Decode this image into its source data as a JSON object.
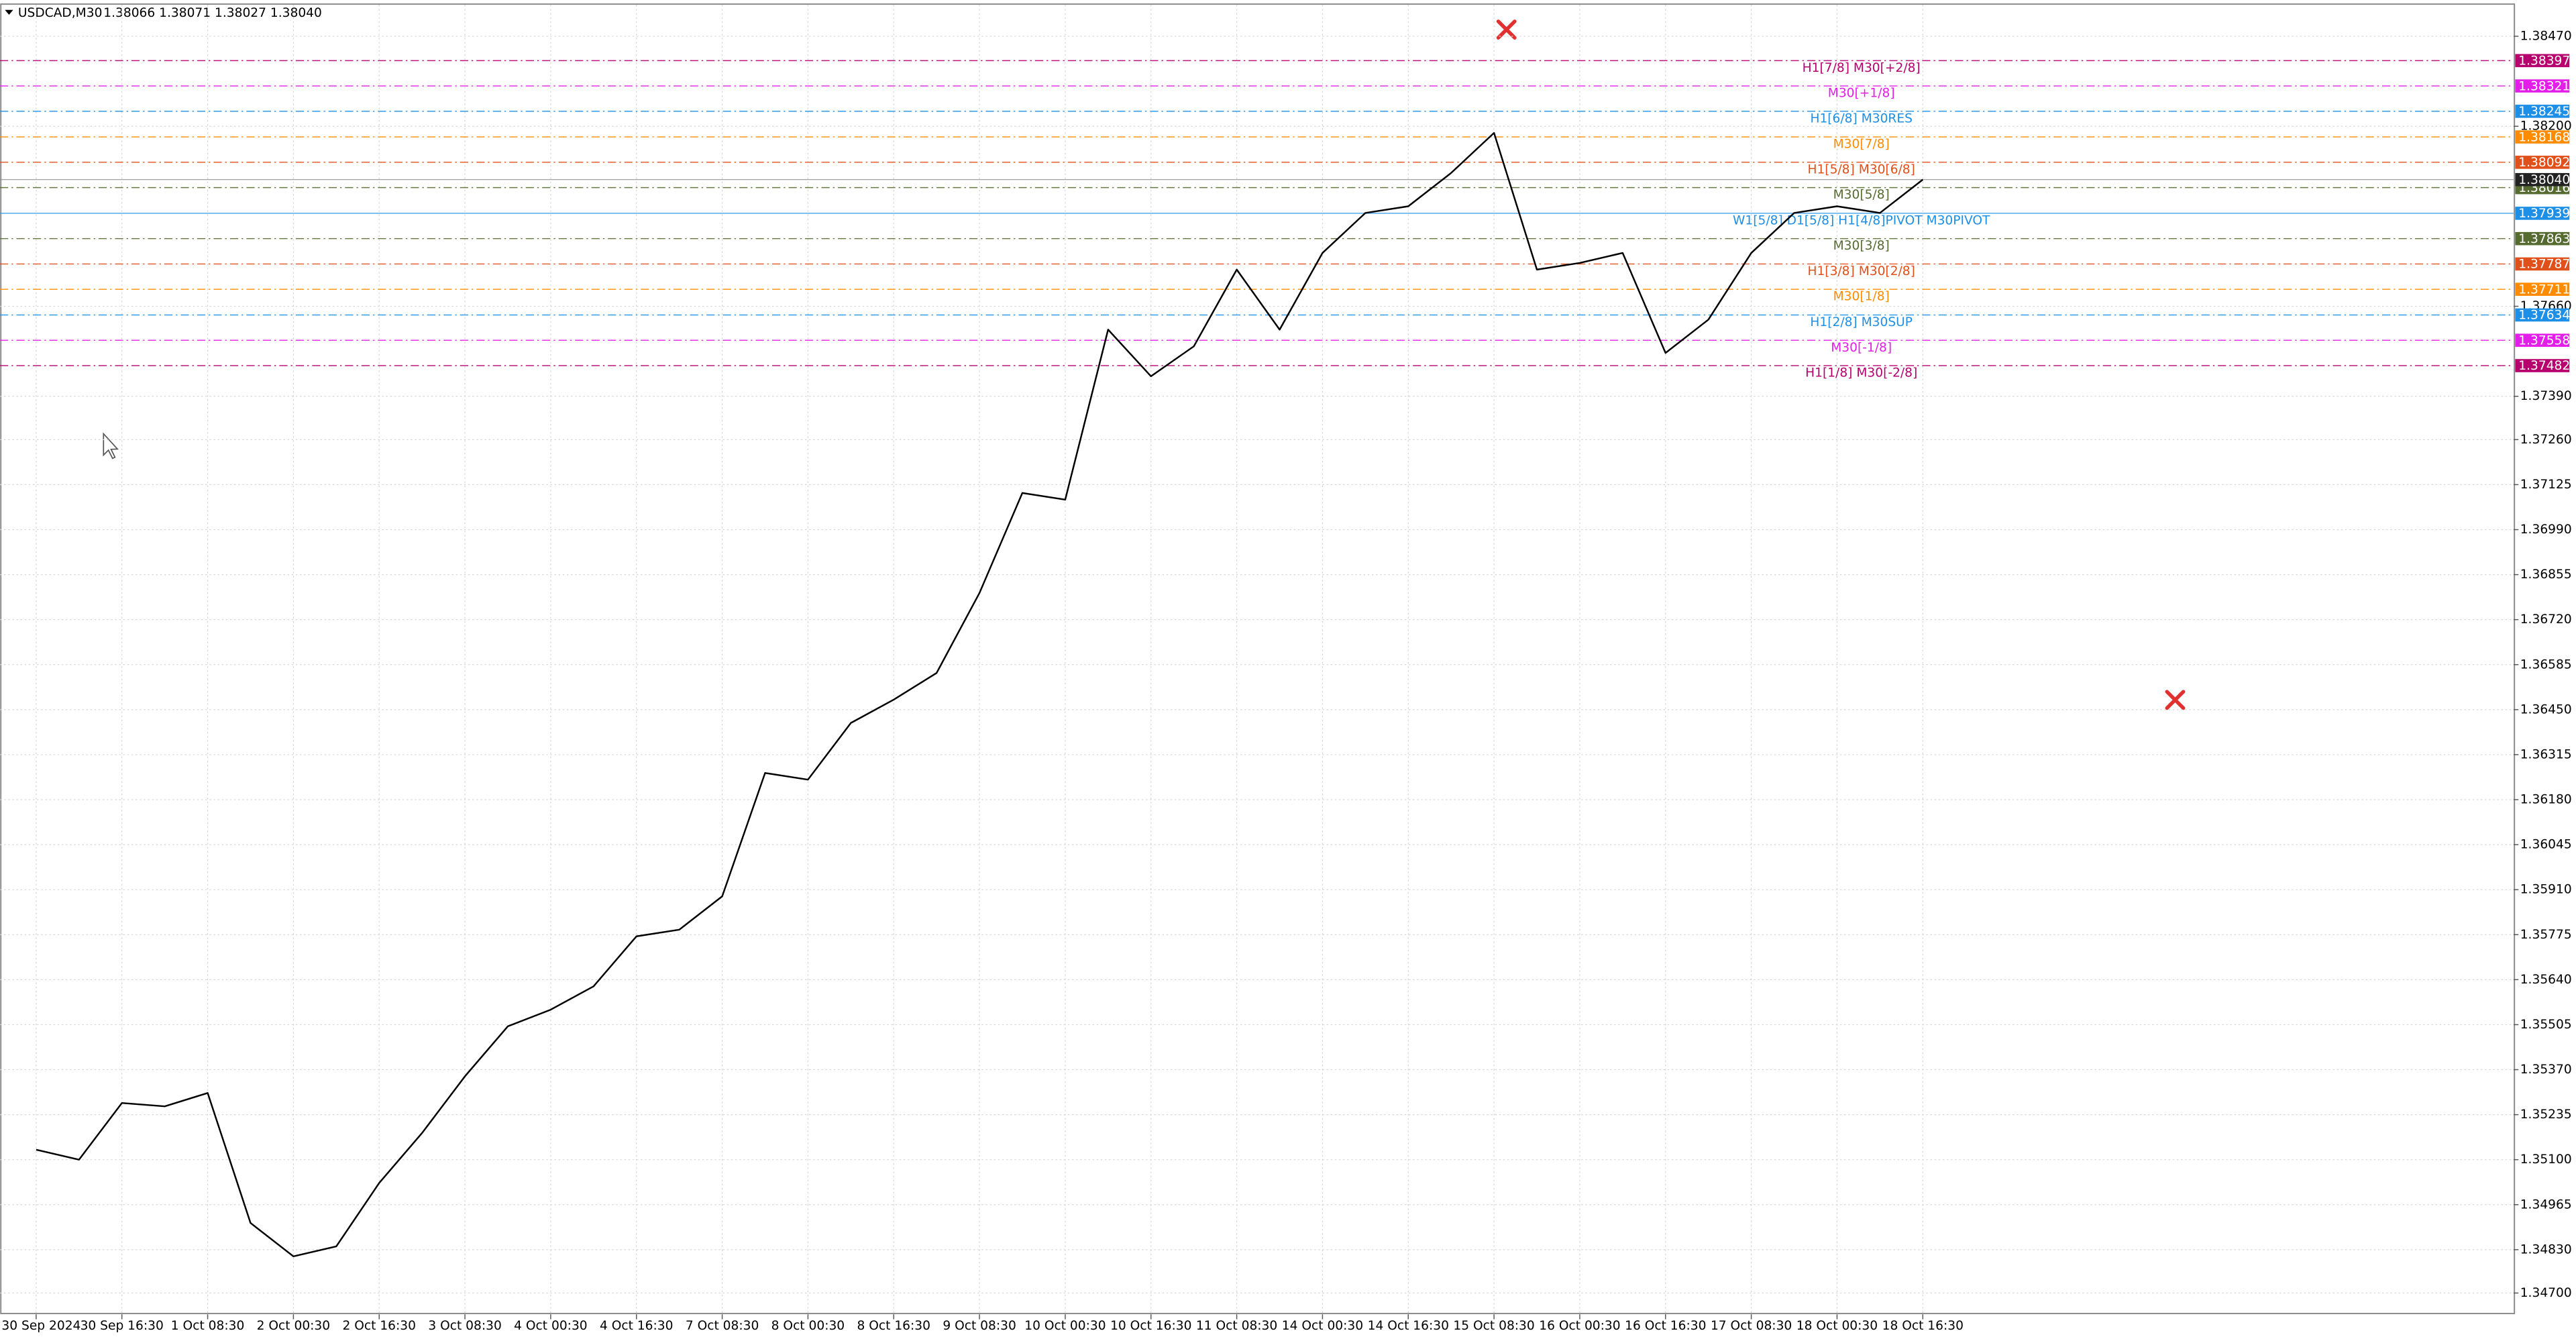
{
  "chart_data": {
    "type": "line",
    "title": "USDCAD,M30",
    "ohlc_text": "1.38066 1.38071 1.38027 1.38040",
    "color": "#000000",
    "categories": [
      "30 Sep 2024",
      null,
      "30 Sep 16:30",
      null,
      "1 Oct 08:30",
      null,
      "2 Oct 00:30",
      null,
      "2 Oct 16:30",
      null,
      "3 Oct 08:30",
      null,
      "4 Oct 00:30",
      null,
      "4 Oct 16:30",
      null,
      "7 Oct 08:30",
      null,
      "8 Oct 00:30",
      null,
      "8 Oct 16:30",
      null,
      "9 Oct 08:30",
      null,
      "10 Oct 00:30",
      null,
      "10 Oct 16:30",
      null,
      "11 Oct 08:30",
      null,
      "14 Oct 00:30",
      null,
      "14 Oct 16:30",
      null,
      "15 Oct 08:30",
      null,
      "16 Oct 00:30",
      null,
      "16 Oct 16:30",
      null,
      "17 Oct 08:30",
      null,
      "18 Oct 00:30",
      null,
      "18 Oct 16:30"
    ],
    "values": [
      1.3513,
      1.351,
      1.3527,
      1.3526,
      1.353,
      1.3491,
      1.3481,
      1.3484,
      1.3503,
      1.3518,
      1.3535,
      1.355,
      1.3555,
      1.3562,
      1.3577,
      1.3579,
      1.3589,
      1.3626,
      1.3624,
      1.3641,
      1.3648,
      1.3656,
      1.368,
      1.371,
      1.3708,
      1.3759,
      1.3745,
      1.3754,
      1.3777,
      1.3759,
      1.3782,
      1.3794,
      1.3796,
      1.3806,
      1.3818,
      1.3777,
      1.3779,
      1.3782,
      1.3752,
      1.3762,
      1.3782,
      1.3794,
      1.3796,
      1.3794,
      1.3804
    ],
    "ylim": [
      1.34636,
      1.38564
    ],
    "yticks": [
      {
        "value": 1.3847,
        "label": "1.38470"
      },
      {
        "value": 1.382,
        "label": "1.38200"
      },
      {
        "value": 1.3766,
        "label": "1.37660"
      },
      {
        "value": 1.3739,
        "label": "1.37390"
      },
      {
        "value": 1.3726,
        "label": "1.37260"
      },
      1.37125,
      {
        "value": 1.3699,
        "label": "1.36990"
      },
      1.36855,
      {
        "value": 1.3672,
        "label": "1.36720"
      },
      1.36585,
      {
        "value": 1.3645,
        "label": "1.36450"
      },
      1.36315,
      {
        "value": 1.3618,
        "label": "1.36180"
      },
      1.36045,
      {
        "value": 1.3591,
        "label": "1.35910"
      },
      1.35775,
      {
        "value": 1.3564,
        "label": "1.35640"
      },
      1.35505,
      {
        "value": 1.3537,
        "label": "1.35370"
      },
      1.35235,
      {
        "value": 1.351,
        "label": "1.35100"
      },
      1.34965,
      {
        "value": 1.3483,
        "label": "1.34830"
      },
      {
        "value": 1.347,
        "label": "1.34700"
      }
    ],
    "grid": true,
    "levels": [
      {
        "value": 1.38397,
        "label": "H1[7/8] M30[+2/8]",
        "color": "#b5006e"
      },
      {
        "value": 1.38321,
        "label": "M30[+1/8]",
        "color": "#e21ee8"
      },
      {
        "value": 1.38245,
        "label": "H1[6/8] M30RES",
        "color": "#1e8fe6"
      },
      {
        "value": 1.38168,
        "label": "M30[7/8]",
        "color": "#ff8c00"
      },
      {
        "value": 1.38092,
        "label": "H1[5/8] M30[6/8]",
        "color": "#e0501a"
      },
      {
        "value": 1.38016,
        "label": "M30[5/8]",
        "color": "#556b2f"
      },
      {
        "value": 1.37939,
        "label": "W1[5/8] D1[5/8] H1[4/8]PIVOT M30PIVOT",
        "color": "#1e8fe6"
      },
      {
        "value": 1.37863,
        "label": "M30[3/8]",
        "color": "#556b2f"
      },
      {
        "value": 1.37787,
        "label": "H1[3/8] M30[2/8]",
        "color": "#e0501a"
      },
      {
        "value": 1.37711,
        "label": "M30[1/8]",
        "color": "#ff8c00"
      },
      {
        "value": 1.37634,
        "label": "H1[2/8] M30SUP",
        "color": "#1e8fe6"
      },
      {
        "value": 1.37558,
        "label": "M30[-1/8]",
        "color": "#e21ee8"
      },
      {
        "value": 1.37482,
        "label": "H1[1/8] M30[-2/8]",
        "color": "#b5006e"
      }
    ],
    "bid": {
      "value": 1.3804,
      "label": "1.38040"
    }
  }
}
